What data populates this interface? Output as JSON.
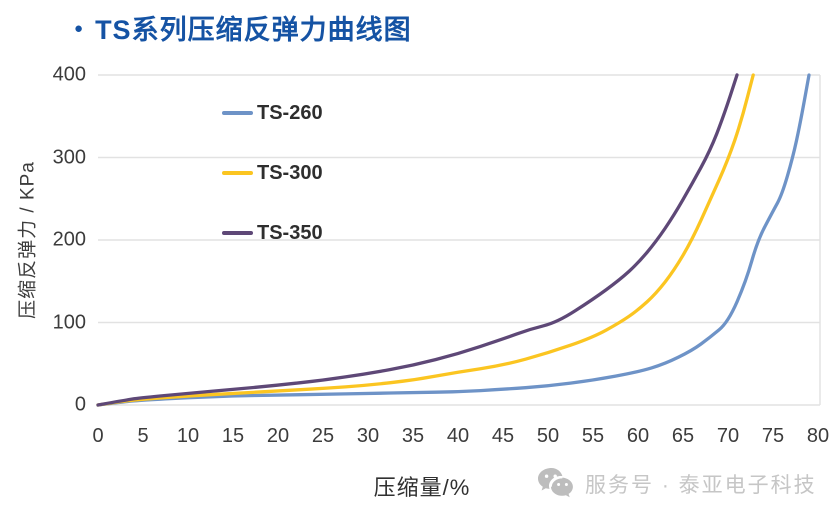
{
  "title": {
    "bullet": "●",
    "text": "TS系列压缩反弹力曲线图",
    "color": "#1553A4"
  },
  "chart_data": {
    "type": "line",
    "title": "TS系列压缩反弹力曲线图",
    "xlabel": "压缩量/%",
    "ylabel": "压缩反弹力 / KPa",
    "xlim": [
      0,
      80
    ],
    "ylim": [
      0,
      400
    ],
    "x_ticks": [
      0,
      5,
      10,
      15,
      20,
      25,
      30,
      35,
      40,
      45,
      50,
      55,
      60,
      65,
      70,
      75,
      80
    ],
    "y_ticks": [
      0,
      100,
      200,
      300,
      400
    ],
    "grid": "horizontal",
    "grid_color": "#e2e2e2",
    "legend_position": "inside-top-left",
    "series": [
      {
        "name": "TS-260",
        "color": "#6E93C7",
        "points": [
          [
            0,
            0
          ],
          [
            3,
            4
          ],
          [
            5,
            6
          ],
          [
            10,
            9
          ],
          [
            15,
            11
          ],
          [
            20,
            12
          ],
          [
            25,
            13
          ],
          [
            30,
            14
          ],
          [
            35,
            15
          ],
          [
            40,
            16
          ],
          [
            45,
            19
          ],
          [
            50,
            23
          ],
          [
            55,
            30
          ],
          [
            60,
            40
          ],
          [
            63,
            50
          ],
          [
            66,
            66
          ],
          [
            68,
            82
          ],
          [
            70,
            100
          ],
          [
            72,
            150
          ],
          [
            73.3,
            200
          ],
          [
            75,
            235
          ],
          [
            76,
            255
          ],
          [
            77.2,
            300
          ],
          [
            78,
            340
          ],
          [
            79,
            400
          ]
        ]
      },
      {
        "name": "TS-300",
        "color": "#FBC521",
        "points": [
          [
            0,
            0
          ],
          [
            3,
            5
          ],
          [
            5,
            7
          ],
          [
            10,
            11
          ],
          [
            15,
            14
          ],
          [
            20,
            17
          ],
          [
            25,
            20
          ],
          [
            30,
            24
          ],
          [
            35,
            30
          ],
          [
            40,
            40
          ],
          [
            45,
            48
          ],
          [
            50,
            63
          ],
          [
            55,
            82
          ],
          [
            58,
            100
          ],
          [
            60,
            115
          ],
          [
            62,
            135
          ],
          [
            64,
            163
          ],
          [
            66,
            200
          ],
          [
            68,
            248
          ],
          [
            70,
            297
          ],
          [
            71.5,
            345
          ],
          [
            72.8,
            400
          ]
        ]
      },
      {
        "name": "TS-350",
        "color": "#5E4877",
        "points": [
          [
            0,
            0
          ],
          [
            3,
            6
          ],
          [
            5,
            9
          ],
          [
            10,
            14
          ],
          [
            15,
            19
          ],
          [
            20,
            24
          ],
          [
            25,
            30
          ],
          [
            30,
            38
          ],
          [
            35,
            48
          ],
          [
            40,
            62
          ],
          [
            45,
            80
          ],
          [
            48,
            92
          ],
          [
            51,
            100
          ],
          [
            55,
            128
          ],
          [
            58,
            152
          ],
          [
            60,
            172
          ],
          [
            62,
            198
          ],
          [
            64,
            230
          ],
          [
            66,
            268
          ],
          [
            68,
            308
          ],
          [
            69.5,
            350
          ],
          [
            71,
            400
          ]
        ]
      }
    ]
  },
  "watermark": {
    "icon": "wechat-icon",
    "text": "服务号 · 泰亚电子科技"
  }
}
